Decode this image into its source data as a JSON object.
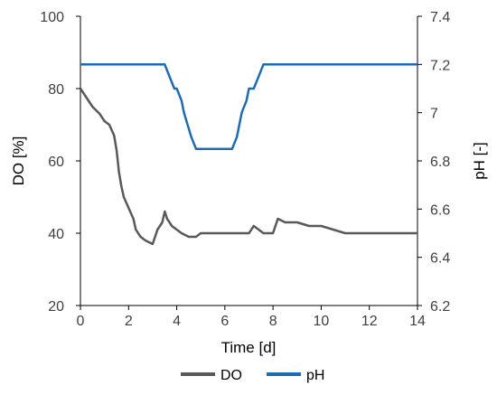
{
  "chart_data": {
    "type": "line",
    "xlabel": "Time [d]",
    "ylabel_left": "DO [%]",
    "ylabel_right": "pH [-]",
    "xlim": [
      0,
      14
    ],
    "ylim_left": [
      20,
      100
    ],
    "ylim_right": [
      6.2,
      7.4
    ],
    "x_ticks": [
      0,
      2,
      4,
      6,
      8,
      10,
      12,
      14
    ],
    "y_left_ticks": [
      20,
      40,
      60,
      80,
      100
    ],
    "y_right_ticks": [
      6.2,
      6.4,
      6.6,
      6.8,
      7,
      7.2,
      7.4
    ],
    "legend_position": "bottom",
    "grid": false,
    "series": [
      {
        "name": "DO",
        "axis": "left",
        "color": "#595959",
        "x": [
          0,
          0.1,
          0.3,
          0.5,
          0.8,
          1.0,
          1.2,
          1.4,
          1.5,
          1.6,
          1.7,
          1.8,
          2.0,
          2.2,
          2.3,
          2.4,
          2.5,
          2.7,
          3.0,
          3.2,
          3.4,
          3.5,
          3.6,
          3.8,
          4.0,
          4.2,
          4.5,
          4.8,
          5.0,
          5.2,
          5.5,
          5.8,
          5.9,
          6.0,
          6.2,
          6.5,
          6.8,
          7.0,
          7.2,
          7.4,
          7.6,
          7.8,
          8.0,
          8.2,
          8.5,
          9.0,
          9.5,
          10.0,
          10.5,
          11.0,
          11.5,
          12.0,
          12.5,
          13.0,
          13.5,
          14.0
        ],
        "y": [
          80,
          79,
          77,
          75,
          73,
          71,
          70,
          67,
          63,
          57,
          53,
          50,
          47,
          44,
          41,
          40,
          39,
          38,
          37,
          41,
          43,
          46,
          44,
          42,
          41,
          40,
          39,
          39,
          40,
          40,
          40,
          40,
          40,
          40,
          40,
          40,
          40,
          40,
          42,
          41,
          40,
          40,
          40,
          44,
          43,
          43,
          42,
          42,
          41,
          40,
          40,
          40,
          40,
          40,
          40,
          40
        ]
      },
      {
        "name": "pH",
        "axis": "right",
        "color": "#1f6bb0",
        "x": [
          0,
          0.3,
          0.5,
          1.0,
          1.5,
          2.0,
          2.5,
          3.0,
          3.5,
          3.9,
          4.0,
          4.2,
          4.3,
          4.6,
          4.8,
          5.0,
          5.5,
          6.0,
          6.3,
          6.5,
          6.7,
          6.9,
          7.0,
          7.2,
          7.4,
          7.6,
          7.8,
          8.0,
          9.0,
          10.0,
          11.0,
          12.0,
          13.0,
          14.0
        ],
        "y": [
          7.2,
          7.2,
          7.2,
          7.2,
          7.2,
          7.2,
          7.2,
          7.2,
          7.2,
          7.1,
          7.1,
          7.05,
          7.0,
          6.9,
          6.85,
          6.85,
          6.85,
          6.85,
          6.85,
          6.9,
          7.0,
          7.05,
          7.1,
          7.1,
          7.15,
          7.2,
          7.2,
          7.2,
          7.2,
          7.2,
          7.2,
          7.2,
          7.2,
          7.2
        ]
      }
    ]
  }
}
